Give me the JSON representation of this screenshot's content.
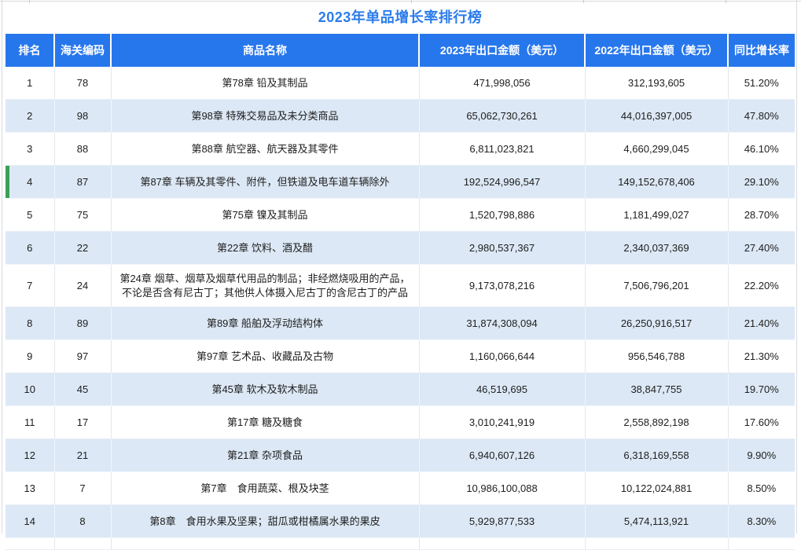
{
  "chart_data": {
    "type": "table",
    "title": "2023年单品增长率排行榜",
    "columns": [
      "排名",
      "海关编码",
      "商品名称",
      "2023年出口金额（美元）",
      "2022年出口金额（美元）",
      "同比增长率"
    ],
    "rows": [
      [
        "1",
        "78",
        "第78章 铅及其制品",
        "471,998,056",
        "312,193,605",
        "51.20%"
      ],
      [
        "2",
        "98",
        "第98章 特殊交易品及未分类商品",
        "65,062,730,261",
        "44,016,397,005",
        "47.80%"
      ],
      [
        "3",
        "88",
        "第88章 航空器、航天器及其零件",
        "6,811,023,821",
        "4,660,299,045",
        "46.10%"
      ],
      [
        "4",
        "87",
        "第87章 车辆及其零件、附件，但铁道及电车道车辆除外",
        "192,524,996,547",
        "149,152,678,406",
        "29.10%"
      ],
      [
        "5",
        "75",
        "第75章 镍及其制品",
        "1,520,798,886",
        "1,181,499,027",
        "28.70%"
      ],
      [
        "6",
        "22",
        "第22章 饮料、酒及醋",
        "2,980,537,367",
        "2,340,037,369",
        "27.40%"
      ],
      [
        "7",
        "24",
        "第24章 烟草、烟草及烟草代用品的制品；非经燃烧吸用的产品，不论是否含有尼古丁；其他供人体摄入尼古丁的含尼古丁的产品",
        "9,173,078,216",
        "7,506,796,201",
        "22.20%"
      ],
      [
        "8",
        "89",
        "第89章 船舶及浮动结构体",
        "31,874,308,094",
        "26,250,916,517",
        "21.40%"
      ],
      [
        "9",
        "97",
        "第97章 艺术品、收藏品及古物",
        "1,160,066,644",
        "956,546,788",
        "21.30%"
      ],
      [
        "10",
        "45",
        "第45章 软木及软木制品",
        "46,519,695",
        "38,847,755",
        "19.70%"
      ],
      [
        "11",
        "17",
        "第17章 糖及糖食",
        "3,010,241,919",
        "2,558,892,198",
        "17.60%"
      ],
      [
        "12",
        "21",
        "第21章 杂项食品",
        "6,940,607,126",
        "6,318,169,558",
        "9.90%"
      ],
      [
        "13",
        "7",
        "第7章　食用蔬菜、根及块茎",
        "10,986,100,088",
        "10,122,024,881",
        "8.50%"
      ],
      [
        "14",
        "8",
        "第8章　食用水果及坚果；甜瓜或柑橘属水果的果皮",
        "5,929,877,533",
        "5,474,113,921",
        "8.30%"
      ]
    ],
    "marked_row_index": 3,
    "legend_position": "none",
    "grid": true
  },
  "colors": {
    "header_bg": "#2777EC",
    "title_text": "#2B7CEB",
    "alt_row_bg": "#DCE8F5",
    "row_marker": "#3BA054",
    "body_text": "#202020"
  }
}
